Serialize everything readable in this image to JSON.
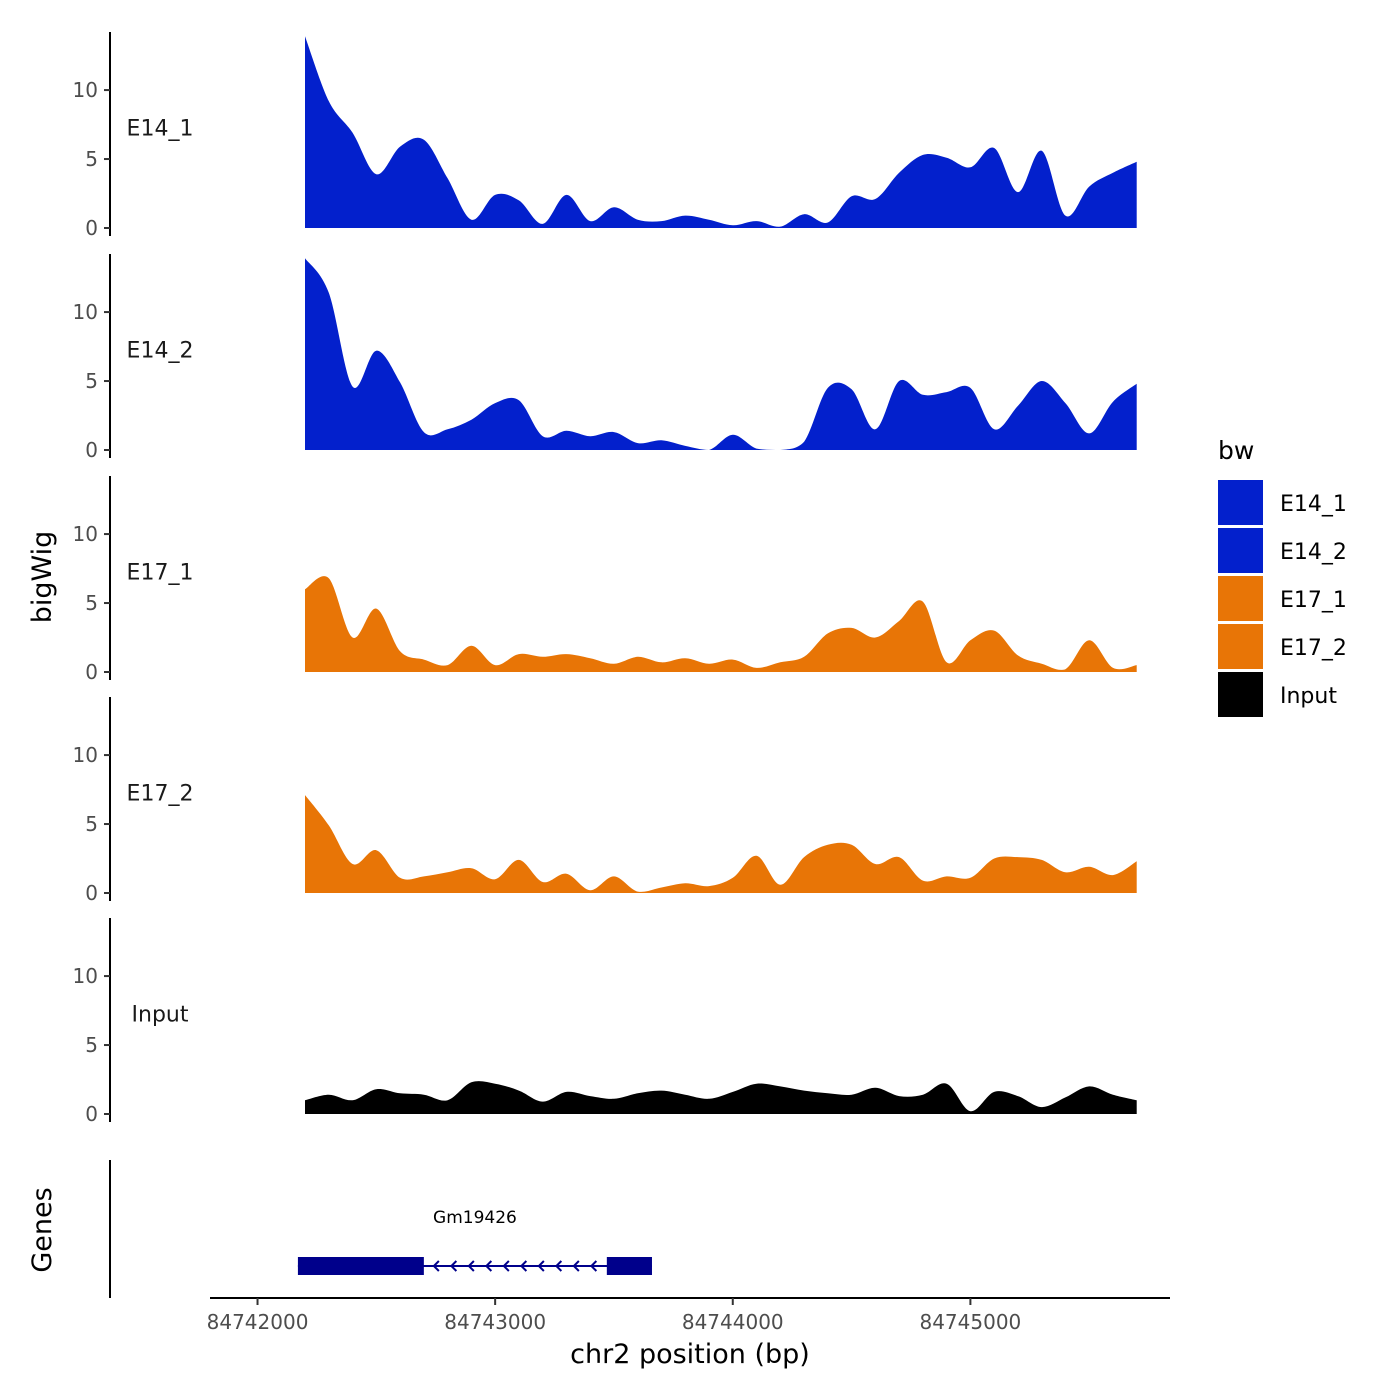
{
  "chart_data": {
    "type": "area",
    "title": "",
    "xlabel": "chr2 position (bp)",
    "ylabel": "bigWig",
    "genes_axis_label": "Genes",
    "xlim": [
      84741800,
      84745840
    ],
    "ylim": [
      0,
      14.5
    ],
    "x_ticks": [
      84742000,
      84743000,
      84744000,
      84745000
    ],
    "x_tick_labels": [
      "84742000",
      "84743000",
      "84744000",
      "84745000"
    ],
    "y_ticks": [
      0,
      5,
      10
    ],
    "y_tick_labels": [
      "0",
      "5",
      "10"
    ],
    "x_start": 84742200,
    "x_step": 100,
    "legend": {
      "title": "bw",
      "position": "right",
      "entries": [
        {
          "label": "E14_1",
          "color": "#0320CC"
        },
        {
          "label": "E14_2",
          "color": "#0320CC"
        },
        {
          "label": "E17_1",
          "color": "#E87506"
        },
        {
          "label": "E17_2",
          "color": "#E87506"
        },
        {
          "label": "Input",
          "color": "#000000"
        }
      ]
    },
    "series": [
      {
        "name": "E14_1",
        "color": "#0320CC",
        "values": [
          13.9,
          9.2,
          6.9,
          3.9,
          5.9,
          6.4,
          3.6,
          0.6,
          2.4,
          2.0,
          0.3,
          2.4,
          0.5,
          1.5,
          0.6,
          0.5,
          0.9,
          0.6,
          0.2,
          0.5,
          0.1,
          1.0,
          0.4,
          2.3,
          2.1,
          4.0,
          5.3,
          5.1,
          4.4,
          5.8,
          2.6,
          5.6,
          0.9,
          3.0,
          4.0,
          4.8
        ]
      },
      {
        "name": "E14_2",
        "color": "#0320CC",
        "values": [
          13.9,
          11.4,
          4.6,
          7.2,
          4.9,
          1.3,
          1.5,
          2.2,
          3.4,
          3.6,
          1.0,
          1.4,
          1.0,
          1.3,
          0.5,
          0.7,
          0.3,
          0.0,
          1.1,
          0.1,
          0.0,
          0.6,
          4.5,
          4.4,
          1.5,
          5.0,
          4.0,
          4.2,
          4.5,
          1.5,
          3.2,
          5.0,
          3.4,
          1.2,
          3.5,
          4.8
        ]
      },
      {
        "name": "E17_1",
        "color": "#E87506",
        "values": [
          6.0,
          6.8,
          2.5,
          4.6,
          1.5,
          0.9,
          0.5,
          1.9,
          0.5,
          1.3,
          1.1,
          1.3,
          1.0,
          0.6,
          1.1,
          0.7,
          1.0,
          0.6,
          0.9,
          0.3,
          0.7,
          1.1,
          2.8,
          3.2,
          2.5,
          3.7,
          5.1,
          0.7,
          2.3,
          3.0,
          1.2,
          0.6,
          0.2,
          2.3,
          0.3,
          0.5
        ]
      },
      {
        "name": "E17_2",
        "color": "#E87506",
        "values": [
          7.1,
          4.9,
          2.1,
          3.1,
          1.1,
          1.2,
          1.5,
          1.8,
          1.0,
          2.4,
          0.8,
          1.4,
          0.2,
          1.2,
          0.1,
          0.4,
          0.7,
          0.5,
          1.1,
          2.7,
          0.6,
          2.6,
          3.5,
          3.5,
          2.1,
          2.6,
          0.9,
          1.2,
          1.1,
          2.5,
          2.6,
          2.4,
          1.5,
          1.9,
          1.3,
          2.3
        ]
      },
      {
        "name": "Input",
        "color": "#000000",
        "values": [
          1.0,
          1.4,
          1.0,
          1.8,
          1.5,
          1.4,
          1.0,
          2.3,
          2.2,
          1.7,
          0.9,
          1.6,
          1.3,
          1.1,
          1.5,
          1.7,
          1.4,
          1.1,
          1.6,
          2.2,
          2.0,
          1.7,
          1.5,
          1.4,
          1.9,
          1.3,
          1.4,
          2.2,
          0.2,
          1.6,
          1.3,
          0.5,
          1.2,
          2.0,
          1.4,
          1.0
        ]
      }
    ],
    "gene": {
      "name": "Gm19426",
      "strand": "-",
      "start": 84742170,
      "end": 84743660,
      "color": "#00008B",
      "exons": [
        [
          84742170,
          84742700
        ],
        [
          84743470,
          84743660
        ]
      ]
    }
  }
}
